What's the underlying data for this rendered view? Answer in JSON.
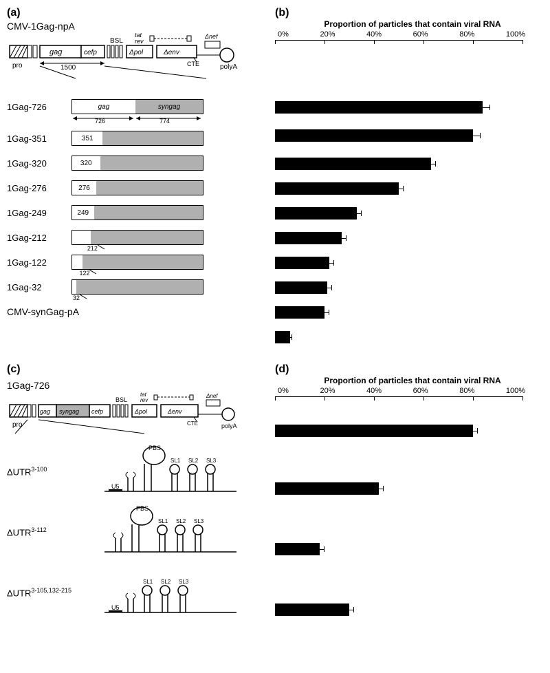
{
  "panelA": {
    "label": "(a)",
    "topConstruct": "CMV-1Gag-npA",
    "schematicLabels": {
      "pro": "pro",
      "gag": "gag",
      "cefp": "cefp",
      "bsl": "BSL",
      "tat": "tat",
      "rev": "rev",
      "dpol": "Δpol",
      "denv": "Δenv",
      "dnef": "Δnef",
      "cte": "CTE",
      "polyA": "polyA",
      "len1500": "1500",
      "len726": "726",
      "len774": "774",
      "syngag": "syngag"
    },
    "constructs": [
      {
        "name": "1Gag-726",
        "white": 726,
        "total": 1500,
        "numLabel": ""
      },
      {
        "name": "1Gag-351",
        "white": 351,
        "total": 1500,
        "numLabel": "351"
      },
      {
        "name": "1Gag-320",
        "white": 320,
        "total": 1500,
        "numLabel": "320"
      },
      {
        "name": "1Gag-276",
        "white": 276,
        "total": 1500,
        "numLabel": "276"
      },
      {
        "name": "1Gag-249",
        "white": 249,
        "total": 1500,
        "numLabel": "249"
      },
      {
        "name": "1Gag-212",
        "white": 212,
        "total": 1500,
        "numLabel": "212",
        "below": true
      },
      {
        "name": "1Gag-122",
        "white": 122,
        "total": 1500,
        "numLabel": "122",
        "below": true
      },
      {
        "name": "1Gag-32",
        "white": 32,
        "total": 1500,
        "numLabel": "32",
        "below": true
      }
    ],
    "bottomConstruct": "CMV-synGag-pA"
  },
  "panelB": {
    "label": "(b)",
    "title": "Proportion of particles that contain viral RNA",
    "xmax": 100,
    "ticks": [
      0,
      20,
      40,
      60,
      80,
      100
    ],
    "tickLabels": [
      "0%",
      "20%",
      "40%",
      "60%",
      "80%",
      "100%"
    ],
    "bars": [
      {
        "value": 84,
        "err": 3
      },
      {
        "value": 80,
        "err": 3
      },
      {
        "value": 63,
        "err": 2
      },
      {
        "value": 50,
        "err": 2
      },
      {
        "value": 33,
        "err": 2
      },
      {
        "value": 27,
        "err": 2
      },
      {
        "value": 22,
        "err": 2
      },
      {
        "value": 21,
        "err": 2
      },
      {
        "value": 20,
        "err": 2
      },
      {
        "value": 6,
        "err": 1
      }
    ],
    "barColor": "#000000",
    "chartWidthPx": 360
  },
  "panelC": {
    "label": "(c)",
    "topConstruct": "1Gag-726",
    "schematicLabels": {
      "pro": "pro",
      "gag": "gag",
      "syngag": "syngag",
      "cefp": "cefp",
      "bsl": "BSL",
      "tat": "tat",
      "rev": "rev",
      "dpol": "Δpol",
      "denv": "Δenv",
      "dnef": "Δnef",
      "cte": "CTE",
      "polyA": "polyA"
    },
    "utrs": [
      {
        "name": "ΔUTR",
        "sup": "3-100",
        "u5": true,
        "pbs": true,
        "sl": [
          "SL1",
          "SL2",
          "SL3"
        ]
      },
      {
        "name": "ΔUTR",
        "sup": "3-112",
        "u5": false,
        "pbs": true,
        "sl": [
          "SL1",
          "SL2",
          "SL3"
        ]
      },
      {
        "name": "ΔUTR",
        "sup": "3-105,132-215",
        "u5": true,
        "pbs": false,
        "sl": [
          "SL1",
          "SL2",
          "SL3"
        ]
      }
    ]
  },
  "panelD": {
    "label": "(d)",
    "title": "Proportion of particles that contain viral RNA",
    "xmax": 100,
    "ticks": [
      0,
      20,
      40,
      60,
      80,
      100
    ],
    "tickLabels": [
      "0%",
      "20%",
      "40%",
      "60%",
      "80%",
      "100%"
    ],
    "bars": [
      {
        "value": 80,
        "err": 2
      },
      {
        "value": 42,
        "err": 2
      },
      {
        "value": 18,
        "err": 2
      },
      {
        "value": 30,
        "err": 2
      }
    ],
    "barColor": "#000000",
    "chartWidthPx": 360
  }
}
